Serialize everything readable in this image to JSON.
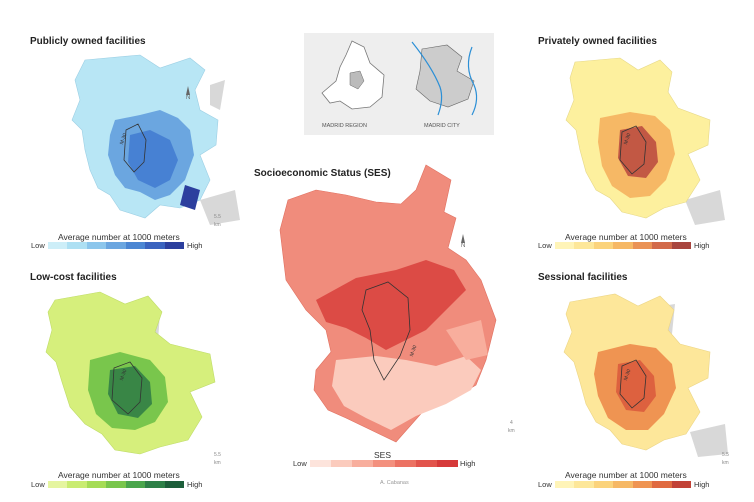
{
  "panels": {
    "public": {
      "title": "Publicly owned facilities",
      "legend_caption": "Average number at 1000 meters",
      "low": "Low",
      "high": "High",
      "ramp": [
        "#cdeef8",
        "#aee0f3",
        "#8cc6ec",
        "#6ba6e0",
        "#4b86d3",
        "#3a63bf",
        "#2c3f9e"
      ],
      "base_color": "#b8e6f5",
      "accent_color": "#3f78d0"
    },
    "private": {
      "title": "Privately owned facilities",
      "legend_caption": "Average number at 1000 meters",
      "low": "Low",
      "high": "High",
      "ramp": [
        "#fff4b8",
        "#fde79a",
        "#fbd37c",
        "#f6b865",
        "#ea9255",
        "#d26a4a",
        "#a8453e"
      ],
      "base_color": "#fdf09e",
      "accent_color": "#b9473e"
    },
    "lowcost": {
      "title": "Low-cost facilities",
      "legend_caption": "Average number at 1000 meters",
      "low": "Low",
      "high": "High",
      "ramp": [
        "#e5f5a0",
        "#c9ec72",
        "#a5dc56",
        "#79c64c",
        "#4aa64c",
        "#2d8047",
        "#1c5e3a"
      ],
      "base_color": "#d6ef7c",
      "accent_color": "#2e7a45"
    },
    "sessional": {
      "title": "Sessional facilities",
      "legend_caption": "Average number at 1000 meters",
      "low": "Low",
      "high": "High",
      "ramp": [
        "#fff4b8",
        "#fde79a",
        "#fbd37c",
        "#f6b865",
        "#ef9452",
        "#e06a40",
        "#c24237"
      ],
      "base_color": "#fde79a",
      "accent_color": "#d9583c"
    },
    "ses": {
      "title": "Socioeconomic Status (SES)",
      "legend_caption": "SES",
      "low": "Low",
      "high": "High",
      "ramp": [
        "#fde4dc",
        "#fbcbbd",
        "#f8ae9d",
        "#f3907e",
        "#ec7263",
        "#e2544c",
        "#d63a3a"
      ],
      "base_color": "#f08c7c",
      "accent_color": "#d8403c"
    }
  },
  "inset": {
    "region_label": "MADRID REGION",
    "city_label": "MADRID CITY"
  },
  "map_elements": {
    "north_label": "N",
    "scale_label_small": "5.5",
    "scale_unit": "km",
    "ring_road_label": "M-30",
    "ses_scale_label": "4"
  },
  "credit": "A. Cabanas"
}
